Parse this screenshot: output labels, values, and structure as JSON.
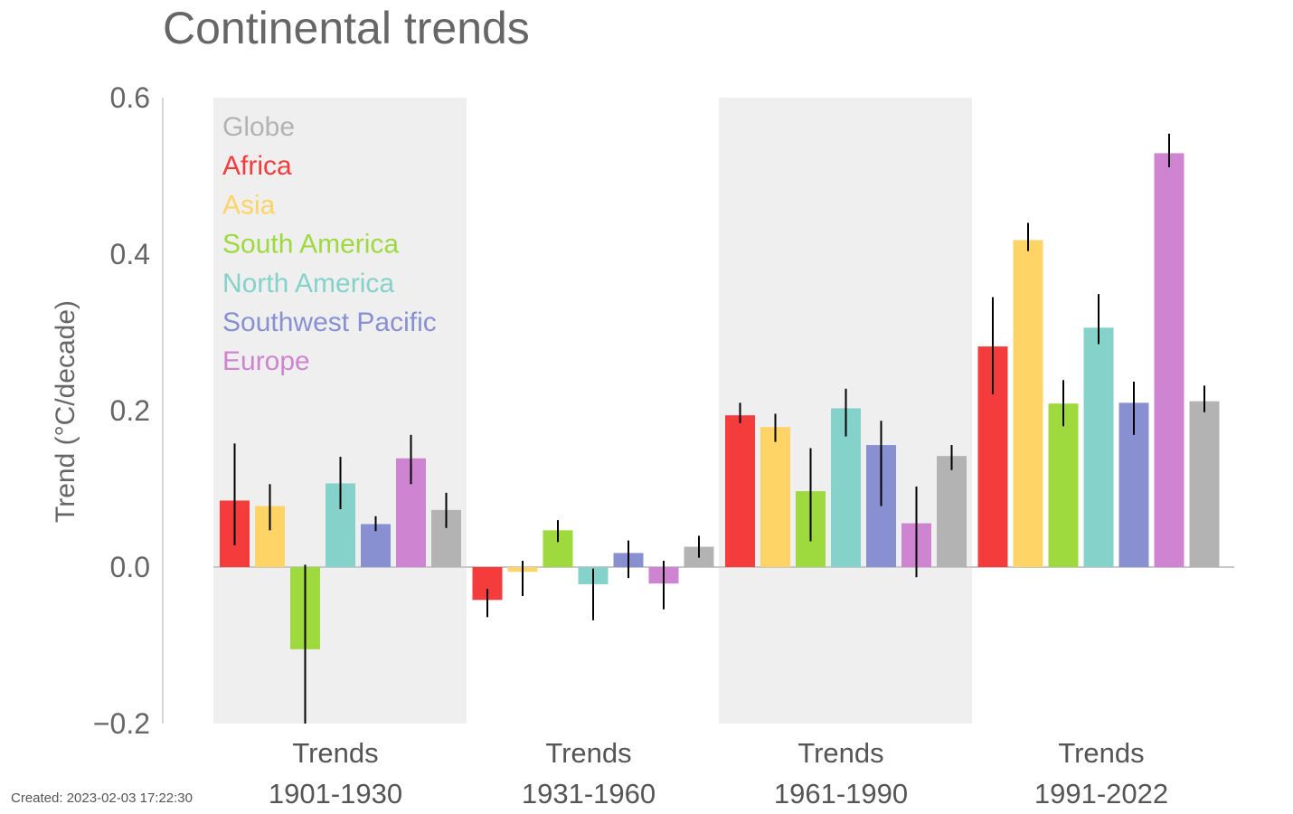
{
  "created": "Created: 2023-02-03 17:22:30",
  "colors": {
    "Globe": "#b3b3b3",
    "Africa": "#f43c3c",
    "Asia": "#fed466",
    "South America": "#9ed93e",
    "North America": "#85d2cb",
    "Southwest Pacific": "#8990d1",
    "Europe": "#cf84d1",
    "shade": "#efefef",
    "axis": "#c8c8c8"
  },
  "chart_data": {
    "type": "bar",
    "title": "Continental trends",
    "ylabel": "Trend (°C/decade)",
    "ylim": [
      -0.2,
      0.6
    ],
    "yticks": [
      "−0.2",
      "0.0",
      "0.2",
      "0.4",
      "0.6"
    ],
    "ytick_values": [
      -0.2,
      0.0,
      0.2,
      0.4,
      0.6
    ],
    "legend_placement": "top-left",
    "legend": [
      "Globe",
      "Africa",
      "Asia",
      "South America",
      "North America",
      "Southwest Pacific",
      "Europe"
    ],
    "categories": [
      {
        "line1": "Trends",
        "line2": "1901-1930",
        "shaded": true
      },
      {
        "line1": "Trends",
        "line2": "1931-1960",
        "shaded": false
      },
      {
        "line1": "Trends",
        "line2": "1961-1990",
        "shaded": true
      },
      {
        "line1": "Trends",
        "line2": "1991-2022",
        "shaded": false
      }
    ],
    "series": [
      {
        "name": "Africa",
        "values": [
          0.085,
          -0.042,
          0.194,
          0.282
        ],
        "err_low": [
          0.028,
          -0.064,
          0.184,
          0.221
        ],
        "err_high": [
          0.158,
          -0.028,
          0.21,
          0.345
        ]
      },
      {
        "name": "Asia",
        "values": [
          0.078,
          -0.006,
          0.179,
          0.418
        ],
        "err_low": [
          0.047,
          -0.037,
          0.16,
          0.404
        ],
        "err_high": [
          0.106,
          0.008,
          0.196,
          0.44
        ]
      },
      {
        "name": "South America",
        "values": [
          -0.105,
          0.047,
          0.097,
          0.209
        ],
        "err_low": [
          -0.2,
          0.032,
          0.033,
          0.18
        ],
        "err_high": [
          0.003,
          0.06,
          0.152,
          0.239
        ]
      },
      {
        "name": "North America",
        "values": [
          0.107,
          -0.022,
          0.203,
          0.306
        ],
        "err_low": [
          0.074,
          -0.068,
          0.167,
          0.285
        ],
        "err_high": [
          0.141,
          -0.002,
          0.228,
          0.349
        ]
      },
      {
        "name": "Southwest Pacific",
        "values": [
          0.055,
          0.018,
          0.156,
          0.21
        ],
        "err_low": [
          0.046,
          -0.014,
          0.078,
          0.169
        ],
        "err_high": [
          0.065,
          0.034,
          0.187,
          0.237
        ]
      },
      {
        "name": "Europe",
        "values": [
          0.139,
          -0.021,
          0.056,
          0.529
        ],
        "err_low": [
          0.106,
          -0.054,
          -0.013,
          0.511
        ],
        "err_high": [
          0.169,
          0.008,
          0.103,
          0.554
        ]
      },
      {
        "name": "Globe",
        "values": [
          0.073,
          0.026,
          0.142,
          0.212
        ],
        "err_low": [
          0.05,
          0.012,
          0.124,
          0.198
        ],
        "err_high": [
          0.095,
          0.04,
          0.156,
          0.232
        ]
      }
    ]
  }
}
